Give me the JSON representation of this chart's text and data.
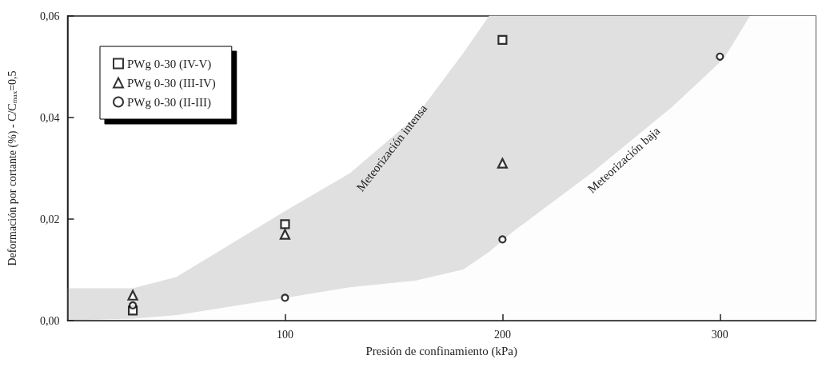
{
  "chart_data": {
    "type": "scatter",
    "xlabel": "Presión de confinamiento (kPa)",
    "ylabel": "Deformación por cortante (%) - C/C$_{max}$=0,5",
    "xlim": [
      0,
      344
    ],
    "xticks": [
      100,
      200,
      300
    ],
    "ylim": [
      0,
      0.06
    ],
    "yticks": [
      {
        "value": 0,
        "label": "0,00"
      },
      {
        "value": 0.02,
        "label": "0,02"
      },
      {
        "value": 0.04,
        "label": "0,04"
      },
      {
        "value": 0.06,
        "label": "0,06"
      }
    ],
    "grid": false,
    "legend": "top left",
    "series": [
      {
        "name": "PWg 0-30 (IV-V)",
        "color": "#000000",
        "marker": "square",
        "x": [
          30,
          100,
          200
        ],
        "values": [
          0.002,
          0.019,
          0.0553
        ]
      },
      {
        "name": "PWg 0-30 (III-IV)",
        "color": "#000000",
        "marker": "triangle",
        "x": [
          30,
          100,
          200
        ],
        "values": [
          0.005,
          0.017,
          0.031
        ]
      },
      {
        "name": "PWg 0-30 (II-III)",
        "color": "#000000",
        "marker": "circle",
        "x": [
          30,
          100,
          200,
          300
        ],
        "values": [
          0.003,
          0.0045,
          0.016,
          0.052
        ]
      },
      {
        "type": "area",
        "color": "#e0e0e0",
        "x": [
          0,
          30,
          50,
          100,
          130,
          160,
          182,
          194,
          205,
          241,
          278,
          302,
          314
        ],
        "values": [
          0.0063,
          0.0063,
          0.0085,
          0.0215,
          0.029,
          0.04,
          0.0526,
          0.06,
          0.06,
          0.06,
          0.06,
          0.06,
          0.06
        ]
      },
      {
        "type": "area",
        "color": "#fdfdfd",
        "x": [
          0,
          30,
          50,
          100,
          130,
          160,
          182,
          194,
          205,
          241,
          278,
          302,
          314,
          344
        ],
        "values": [
          0,
          0.0003,
          0.001,
          0.0044,
          0.0065,
          0.0078,
          0.01,
          0.0135,
          0.0175,
          0.029,
          0.042,
          0.0516,
          0.06,
          0.06
        ]
      }
    ],
    "annotations": [
      "Meteorización intensa",
      "Meteorización baja"
    ]
  }
}
